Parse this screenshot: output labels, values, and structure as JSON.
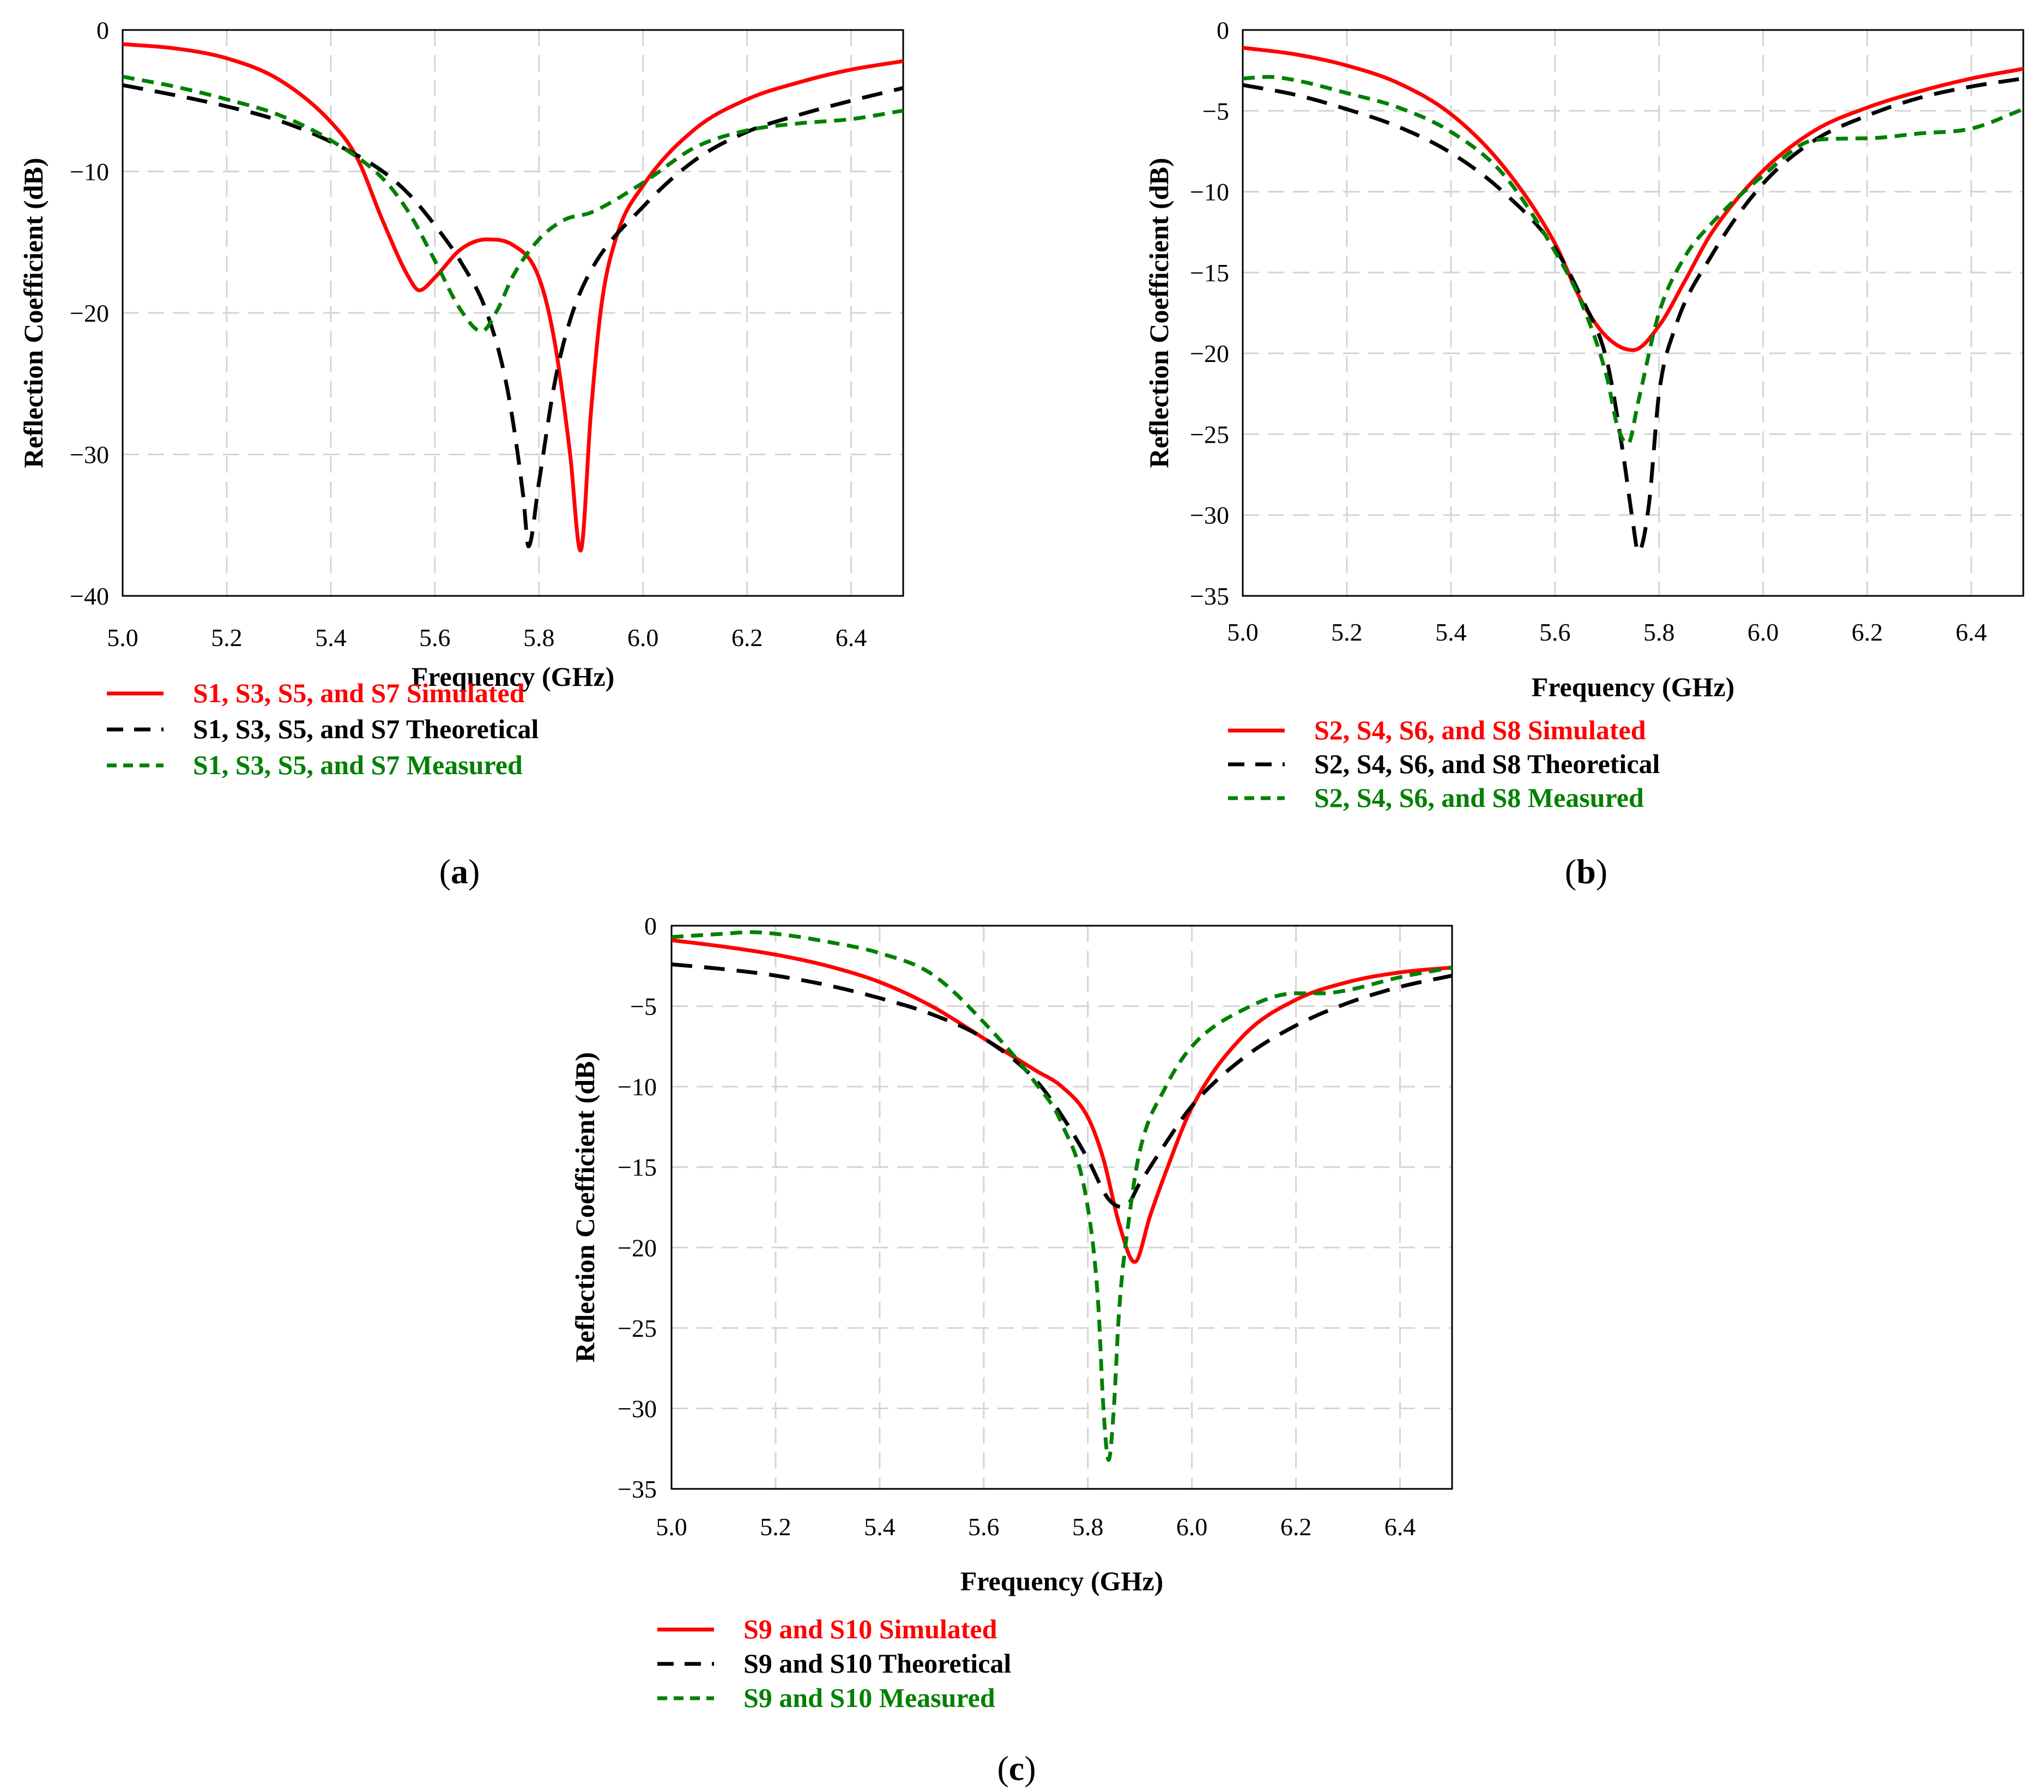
{
  "colors": {
    "simulated": "#ff0000",
    "theoretical": "#000000",
    "measured": "#008000",
    "grid": "#d4d4d4",
    "axis": "#000000"
  },
  "chart_data": [
    {
      "panel": "(a)",
      "panel_letter": "a",
      "type": "line",
      "xlabel": "Frequency (GHz)",
      "ylabel": "Reflection Coefficient (dB)",
      "xlim": [
        5.0,
        6.5
      ],
      "ylim": [
        -40,
        0
      ],
      "xticks": [
        5.0,
        5.2,
        5.4,
        5.6,
        5.8,
        6.0,
        6.2,
        6.4
      ],
      "xtick_labels": [
        "5.0",
        "5.2",
        "5.4",
        "5.6",
        "5.8",
        "6.0",
        "6.2",
        "6.4"
      ],
      "yticks": [
        0,
        -10,
        -20,
        -30,
        -40
      ],
      "ytick_labels": [
        "0",
        "−10",
        "−20",
        "−30",
        "−40"
      ],
      "grid": true,
      "legend_position": "below",
      "series": [
        {
          "name": "S1, S3, S5, and S7 Simulated",
          "style": "solid",
          "color_key": "simulated",
          "x": [
            5.0,
            5.1,
            5.2,
            5.3,
            5.4,
            5.45,
            5.5,
            5.55,
            5.57,
            5.6,
            5.65,
            5.7,
            5.75,
            5.8,
            5.83,
            5.86,
            5.88,
            5.9,
            5.92,
            5.95,
            6.0,
            6.1,
            6.2,
            6.3,
            6.4,
            6.5
          ],
          "y": [
            -1.0,
            -1.3,
            -2.0,
            -3.5,
            -6.5,
            -9.0,
            -13.5,
            -17.5,
            -18.4,
            -17.5,
            -15.5,
            -14.8,
            -15.2,
            -17.5,
            -22.0,
            -30.0,
            -36.8,
            -27.0,
            -19.5,
            -14.5,
            -11.0,
            -7.0,
            -4.9,
            -3.7,
            -2.8,
            -2.2
          ]
        },
        {
          "name": "S1, S3, S5, and S7 Theoretical",
          "style": "dashed",
          "color_key": "theoretical",
          "x": [
            5.0,
            5.1,
            5.2,
            5.3,
            5.4,
            5.5,
            5.55,
            5.6,
            5.65,
            5.7,
            5.74,
            5.77,
            5.78,
            5.8,
            5.83,
            5.86,
            5.9,
            6.0,
            6.1,
            6.2,
            6.3,
            6.4,
            6.5
          ],
          "y": [
            -3.9,
            -4.6,
            -5.4,
            -6.4,
            -7.9,
            -10.0,
            -11.6,
            -13.8,
            -16.4,
            -20.0,
            -25.5,
            -33.0,
            -36.5,
            -32.0,
            -25.0,
            -20.5,
            -17.0,
            -12.5,
            -9.2,
            -7.2,
            -6.0,
            -5.0,
            -4.1
          ]
        },
        {
          "name": "S1, S3, S5, and S7 Measured",
          "style": "dotted",
          "color_key": "measured",
          "x": [
            5.0,
            5.1,
            5.2,
            5.3,
            5.4,
            5.5,
            5.55,
            5.6,
            5.65,
            5.69,
            5.72,
            5.75,
            5.8,
            5.85,
            5.9,
            6.0,
            6.1,
            6.2,
            6.3,
            6.4,
            6.5
          ],
          "y": [
            -3.3,
            -4.0,
            -4.9,
            -6.0,
            -7.8,
            -10.5,
            -12.9,
            -16.3,
            -19.8,
            -21.3,
            -19.8,
            -17.4,
            -14.8,
            -13.4,
            -12.9,
            -10.8,
            -8.3,
            -7.1,
            -6.6,
            -6.3,
            -5.7
          ]
        }
      ]
    },
    {
      "panel": "(b)",
      "panel_letter": "b",
      "type": "line",
      "xlabel": "Frequency (GHz)",
      "ylabel": "Reflection Coefficient (dB)",
      "xlim": [
        5.0,
        6.5
      ],
      "ylim": [
        -35,
        0
      ],
      "xticks": [
        5.0,
        5.2,
        5.4,
        5.6,
        5.8,
        6.0,
        6.2,
        6.4
      ],
      "xtick_labels": [
        "5.0",
        "5.2",
        "5.4",
        "5.6",
        "5.8",
        "6.0",
        "6.2",
        "6.4"
      ],
      "yticks": [
        0,
        -5,
        -10,
        -15,
        -20,
        -25,
        -30,
        -35
      ],
      "ytick_labels": [
        "0",
        "−5",
        "−10",
        "−15",
        "−20",
        "−25",
        "−30",
        "−35"
      ],
      "grid": true,
      "legend_position": "below",
      "series": [
        {
          "name": "S2, S4, S6, and S8 Simulated",
          "style": "solid",
          "color_key": "simulated",
          "x": [
            5.0,
            5.1,
            5.2,
            5.3,
            5.4,
            5.5,
            5.6,
            5.65,
            5.7,
            5.75,
            5.8,
            5.85,
            5.9,
            6.0,
            6.1,
            6.2,
            6.3,
            6.4,
            6.5
          ],
          "y": [
            -1.1,
            -1.5,
            -2.2,
            -3.3,
            -5.2,
            -8.4,
            -13.2,
            -16.7,
            -19.0,
            -19.8,
            -18.3,
            -15.5,
            -12.6,
            -8.7,
            -6.2,
            -4.8,
            -3.8,
            -3.0,
            -2.4
          ]
        },
        {
          "name": "S2, S4, S6, and S8 Theoretical",
          "style": "dashed",
          "color_key": "theoretical",
          "x": [
            5.0,
            5.1,
            5.2,
            5.3,
            5.4,
            5.5,
            5.6,
            5.65,
            5.7,
            5.73,
            5.75,
            5.76,
            5.78,
            5.8,
            5.83,
            5.9,
            6.0,
            6.1,
            6.2,
            6.3,
            6.4,
            6.5
          ],
          "y": [
            -3.4,
            -4.0,
            -4.9,
            -6.0,
            -7.6,
            -10.0,
            -13.5,
            -16.5,
            -20.5,
            -26.0,
            -30.5,
            -32.3,
            -29.5,
            -22.5,
            -18.5,
            -14.0,
            -9.5,
            -6.8,
            -5.3,
            -4.2,
            -3.5,
            -3.0
          ]
        },
        {
          "name": "S2, S4, S6, and S8 Measured",
          "style": "dotted",
          "color_key": "measured",
          "x": [
            5.0,
            5.05,
            5.1,
            5.2,
            5.3,
            5.4,
            5.5,
            5.6,
            5.65,
            5.7,
            5.72,
            5.74,
            5.76,
            5.8,
            5.85,
            5.9,
            6.0,
            6.1,
            6.2,
            6.3,
            6.4,
            6.5
          ],
          "y": [
            -3.0,
            -2.9,
            -3.1,
            -3.9,
            -4.8,
            -6.3,
            -8.9,
            -13.7,
            -16.8,
            -21.5,
            -24.5,
            -25.6,
            -23.0,
            -17.5,
            -14.0,
            -12.0,
            -9.0,
            -6.8,
            -6.7,
            -6.4,
            -6.1,
            -4.9
          ]
        }
      ]
    },
    {
      "panel": "(c)",
      "panel_letter": "c",
      "type": "line",
      "xlabel": "Frequency (GHz)",
      "ylabel": "Reflection Coefficient (dB)",
      "xlim": [
        5.0,
        6.5
      ],
      "ylim": [
        -35,
        0
      ],
      "xticks": [
        5.0,
        5.2,
        5.4,
        5.6,
        5.8,
        6.0,
        6.2,
        6.4
      ],
      "xtick_labels": [
        "5.0",
        "5.2",
        "5.4",
        "5.6",
        "5.8",
        "6.0",
        "6.2",
        "6.4"
      ],
      "yticks": [
        0,
        -5,
        -10,
        -15,
        -20,
        -25,
        -30,
        -35
      ],
      "ytick_labels": [
        "0",
        "−5",
        "−10",
        "−15",
        "−20",
        "−25",
        "−30",
        "−35"
      ],
      "grid": true,
      "legend_position": "below",
      "series": [
        {
          "name": "S9 and S10 Simulated",
          "style": "solid",
          "color_key": "simulated",
          "x": [
            5.0,
            5.1,
            5.2,
            5.3,
            5.4,
            5.5,
            5.6,
            5.7,
            5.75,
            5.8,
            5.83,
            5.86,
            5.89,
            5.92,
            5.95,
            6.0,
            6.1,
            6.2,
            6.3,
            6.4,
            6.5
          ],
          "y": [
            -0.9,
            -1.3,
            -1.8,
            -2.5,
            -3.5,
            -5.0,
            -7.0,
            -9.0,
            -10.0,
            -11.9,
            -14.5,
            -18.5,
            -20.9,
            -18.0,
            -15.3,
            -11.3,
            -6.8,
            -4.6,
            -3.5,
            -2.9,
            -2.6
          ]
        },
        {
          "name": "S9 and S10 Theoretical",
          "style": "dashed",
          "color_key": "theoretical",
          "x": [
            5.0,
            5.1,
            5.2,
            5.3,
            5.4,
            5.5,
            5.6,
            5.7,
            5.75,
            5.8,
            5.84,
            5.87,
            5.9,
            5.95,
            6.0,
            6.1,
            6.2,
            6.3,
            6.4,
            6.5
          ],
          "y": [
            -2.4,
            -2.7,
            -3.1,
            -3.7,
            -4.5,
            -5.5,
            -7.0,
            -9.6,
            -11.8,
            -14.5,
            -17.0,
            -17.5,
            -16.0,
            -13.5,
            -11.2,
            -8.2,
            -6.2,
            -4.8,
            -3.8,
            -3.1
          ]
        },
        {
          "name": "S9 and S10 Measured",
          "style": "dotted",
          "color_key": "measured",
          "x": [
            5.0,
            5.1,
            5.15,
            5.2,
            5.3,
            5.4,
            5.5,
            5.6,
            5.7,
            5.75,
            5.8,
            5.82,
            5.83,
            5.84,
            5.85,
            5.86,
            5.88,
            5.9,
            5.95,
            6.0,
            6.1,
            6.2,
            6.25,
            6.3,
            6.4,
            6.5
          ],
          "y": [
            -0.7,
            -0.5,
            -0.4,
            -0.5,
            -1.0,
            -1.7,
            -3.0,
            -6.0,
            -9.8,
            -12.3,
            -17.5,
            -23.5,
            -30.0,
            -33.2,
            -30.0,
            -24.0,
            -18.0,
            -14.0,
            -10.0,
            -7.5,
            -5.2,
            -4.2,
            -4.2,
            -4.0,
            -3.2,
            -2.6
          ]
        }
      ]
    }
  ]
}
